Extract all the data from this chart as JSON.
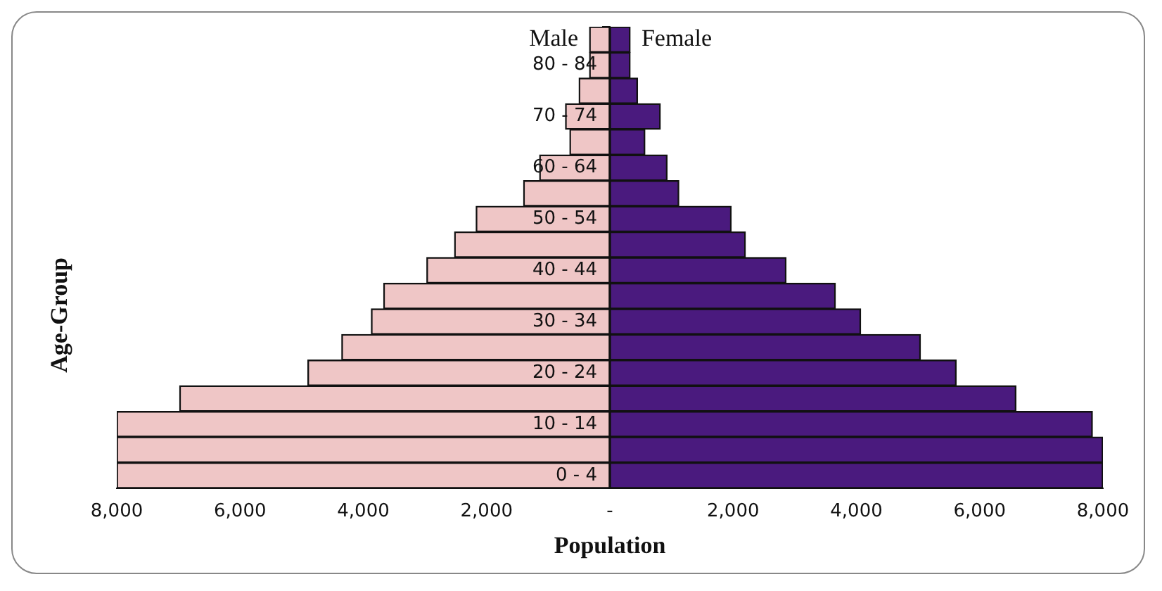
{
  "chart_data": {
    "type": "bar",
    "orientation": "horizontal",
    "stacked": true,
    "xlabel": "Population",
    "ylabel": "Age-Group",
    "categories": [
      null,
      "80 - 84",
      null,
      "70 - 74",
      null,
      "60 - 64",
      null,
      "50 - 54",
      null,
      "40 - 44",
      null,
      "30 - 34",
      null,
      "20 - 24",
      null,
      "10 - 14",
      null,
      "0 - 4"
    ],
    "series": [
      {
        "name": "Male",
        "color": "#efc6c6",
        "values": [
          -330,
          -330,
          -500,
          -720,
          -650,
          -1140,
          -1400,
          -2170,
          -2520,
          -2970,
          -3670,
          -3870,
          -4350,
          -4900,
          -6980,
          -8000,
          -8000,
          -8000
        ]
      },
      {
        "name": "Female",
        "color": "#4a1a7e",
        "values": [
          330,
          330,
          450,
          820,
          570,
          930,
          1120,
          1970,
          2200,
          2860,
          3660,
          4070,
          5040,
          5620,
          6590,
          7830,
          8000,
          8000
        ]
      }
    ],
    "xlim": [
      -8000,
      8000
    ],
    "xticks": [
      {
        "value": -8000,
        "label": "8,000"
      },
      {
        "value": -6000,
        "label": "6,000"
      },
      {
        "value": -4000,
        "label": "4,000"
      },
      {
        "value": -2000,
        "label": "2,000"
      },
      {
        "value": 0,
        "label": "-"
      },
      {
        "value": 2000,
        "label": "2,000"
      },
      {
        "value": 4000,
        "label": "4,000"
      },
      {
        "value": 6000,
        "label": "6,000"
      },
      {
        "value": 8000,
        "label": "8,000"
      }
    ],
    "grid": false,
    "legend": false
  }
}
